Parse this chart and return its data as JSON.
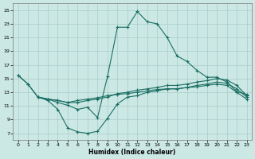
{
  "xlabel": "Humidex (Indice chaleur)",
  "bg_color": "#cce8e4",
  "grid_color": "#a8ccc8",
  "line_color": "#1a6e64",
  "xlim": [
    -0.5,
    23.5
  ],
  "ylim": [
    6,
    26
  ],
  "xticks": [
    0,
    1,
    2,
    3,
    4,
    5,
    6,
    7,
    8,
    9,
    10,
    11,
    12,
    13,
    14,
    15,
    16,
    17,
    18,
    19,
    20,
    21,
    22,
    23
  ],
  "yticks": [
    7,
    9,
    11,
    13,
    15,
    17,
    19,
    21,
    23,
    25
  ],
  "line1_x": [
    0,
    1,
    2,
    3,
    4,
    5,
    6,
    7,
    8,
    9,
    10,
    11,
    12,
    13,
    14,
    15,
    16,
    17,
    18,
    19,
    20,
    21,
    22,
    23
  ],
  "line1_y": [
    15.5,
    14.2,
    12.3,
    12.0,
    11.5,
    11.1,
    10.5,
    10.8,
    9.3,
    15.3,
    22.5,
    22.5,
    24.8,
    23.3,
    23.0,
    21.0,
    18.3,
    17.5,
    16.2,
    15.2,
    15.2,
    14.5,
    13.1,
    12.7
  ],
  "line2_x": [
    2,
    3,
    4,
    5,
    6,
    7,
    8,
    9,
    10,
    11,
    12,
    13,
    14,
    15,
    16,
    17,
    18,
    19,
    20,
    21,
    22,
    23
  ],
  "line2_y": [
    12.3,
    11.8,
    10.5,
    7.8,
    7.2,
    7.0,
    7.3,
    9.2,
    11.3,
    12.3,
    12.5,
    13.0,
    13.2,
    13.5,
    13.5,
    13.7,
    14.0,
    14.2,
    14.5,
    14.3,
    13.5,
    12.3
  ],
  "line3_x": [
    0,
    1,
    2,
    3,
    4,
    5,
    6,
    7,
    8,
    9,
    10,
    11,
    12,
    13,
    14,
    15,
    16,
    17,
    18,
    19,
    20,
    21,
    22,
    23
  ],
  "line3_y": [
    15.5,
    14.2,
    12.3,
    12.0,
    11.8,
    11.5,
    11.5,
    11.8,
    12.0,
    12.3,
    12.8,
    13.0,
    13.3,
    13.5,
    13.7,
    14.0,
    14.0,
    14.2,
    14.5,
    14.7,
    15.0,
    14.8,
    14.0,
    12.5
  ],
  "line4_x": [
    2,
    3,
    4,
    5,
    6,
    7,
    8,
    9,
    10,
    11,
    12,
    13,
    14,
    15,
    16,
    17,
    18,
    19,
    20,
    21,
    22,
    23
  ],
  "line4_y": [
    12.3,
    12.0,
    11.8,
    11.5,
    11.8,
    12.0,
    12.2,
    12.5,
    12.7,
    12.8,
    13.0,
    13.2,
    13.4,
    13.5,
    13.5,
    13.7,
    13.8,
    14.0,
    14.2,
    14.0,
    13.0,
    12.0
  ]
}
